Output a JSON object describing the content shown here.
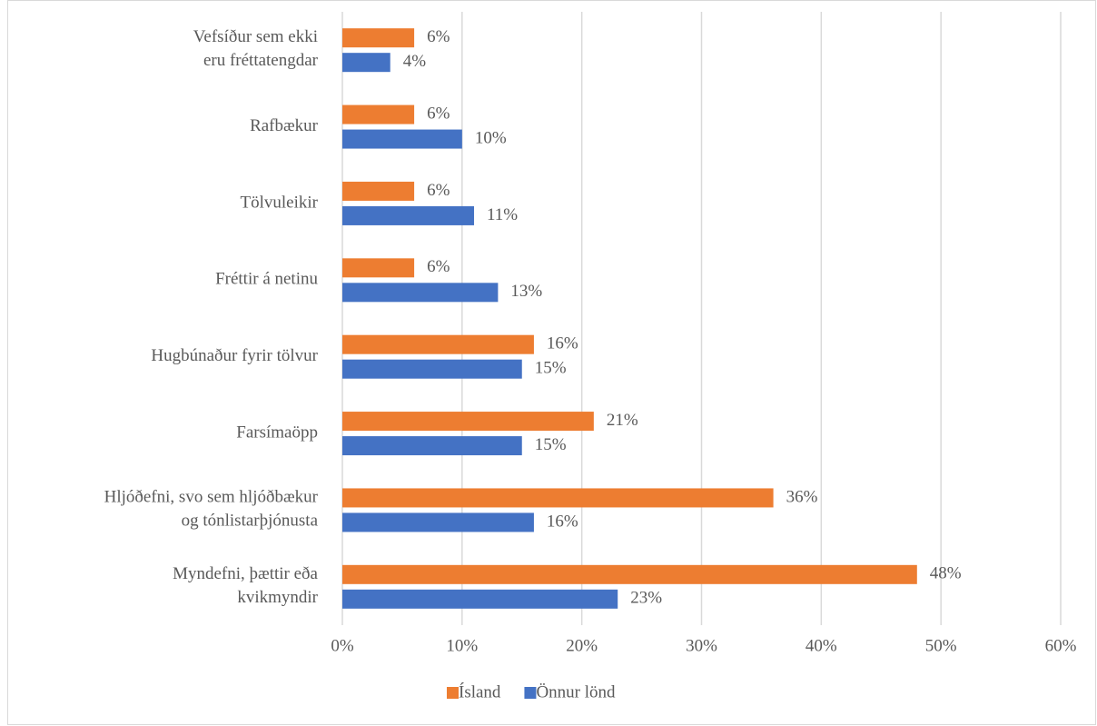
{
  "chart_data": {
    "type": "bar",
    "orientation": "horizontal",
    "categories": [
      "Vefsíður sem ekki\neru fréttatengdar",
      "Rafbækur",
      "Tölvuleikir",
      "Fréttir á netinu",
      "Hugbúnaður fyrir tölvur",
      "Farsímaöpp",
      "Hljóðefni, svo sem hljóðbækur\nog tónlistarþjónusta",
      "Myndefni, þættir eða\nkvikmyndir"
    ],
    "series": [
      {
        "name": "Ísland",
        "color": "#ed7d31",
        "values": [
          6,
          6,
          6,
          6,
          16,
          21,
          36,
          48
        ],
        "value_labels": [
          "6%",
          "6%",
          "6%",
          "6%",
          "16%",
          "21%",
          "36%",
          "48%"
        ]
      },
      {
        "name": "Önnur lönd",
        "color": "#4472c4",
        "values": [
          4,
          10,
          11,
          13,
          15,
          15,
          16,
          23
        ],
        "value_labels": [
          "4%",
          "10%",
          "11%",
          "13%",
          "15%",
          "15%",
          "16%",
          "23%"
        ]
      }
    ],
    "xlim": [
      0,
      60
    ],
    "xticks": [
      {
        "value": 0,
        "label": "0%"
      },
      {
        "value": 10,
        "label": "10%"
      },
      {
        "value": 20,
        "label": "20%"
      },
      {
        "value": 30,
        "label": "30%"
      },
      {
        "value": 40,
        "label": "40%"
      },
      {
        "value": 50,
        "label": "50%"
      },
      {
        "value": 60,
        "label": "60%"
      }
    ],
    "grid": true,
    "legend": "bottom"
  }
}
